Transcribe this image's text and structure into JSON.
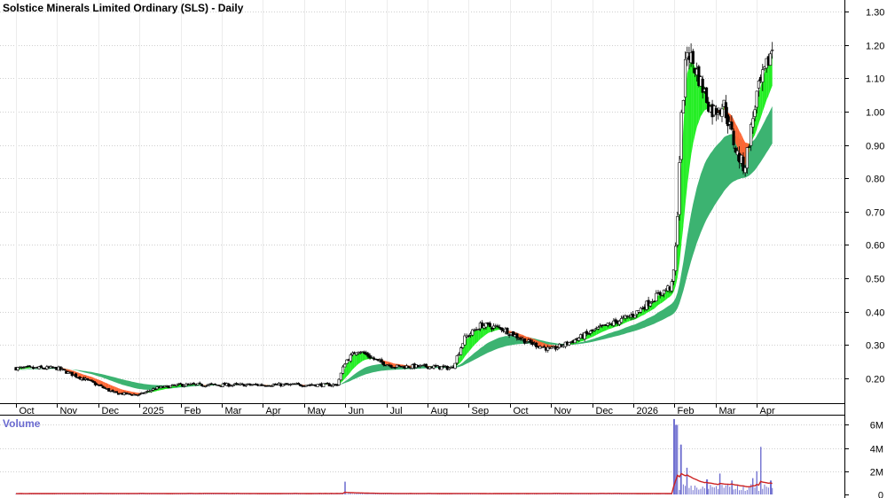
{
  "chart_data": {
    "type": "candlestick",
    "title": "Solstice Minerals Limited Ordinary (SLS) - Daily",
    "volume_label": "Volume",
    "price_axis": {
      "ticks": [
        0.2,
        0.3,
        0.4,
        0.5,
        0.6,
        0.7,
        0.8,
        0.9,
        1.0,
        1.1,
        1.2,
        1.3
      ],
      "tick_labels": [
        "0.20",
        "0.30",
        "0.40",
        "0.50",
        "0.60",
        "0.70",
        "0.80",
        "0.90",
        "1.00",
        "1.10",
        "1.20",
        "1.30"
      ],
      "range": [
        0.125,
        1.335
      ],
      "side": "right"
    },
    "volume_axis": {
      "ticks": [
        0,
        2,
        4,
        6
      ],
      "tick_labels": [
        "0",
        "2M",
        "4M",
        "6M"
      ],
      "range": [
        0,
        6.8
      ],
      "unit": "millions"
    },
    "months": [
      "Oct",
      "Nov",
      "Dec",
      "2025",
      "Feb",
      "Mar",
      "Apr",
      "May",
      "Jun",
      "Jul",
      "Aug",
      "Sep",
      "Oct",
      "Nov",
      "Dec",
      "2026",
      "Feb",
      "Mar",
      "Apr"
    ],
    "price_points": [
      {
        "t": 0.0,
        "c": 0.23
      },
      {
        "t": 1.0,
        "c": 0.23
      },
      {
        "t": 1.8,
        "c": 0.19
      },
      {
        "t": 2.4,
        "c": 0.155
      },
      {
        "t": 3.0,
        "c": 0.15
      },
      {
        "t": 3.4,
        "c": 0.17
      },
      {
        "t": 4.0,
        "c": 0.18
      },
      {
        "t": 5.0,
        "c": 0.18
      },
      {
        "t": 6.0,
        "c": 0.18
      },
      {
        "t": 7.0,
        "c": 0.18
      },
      {
        "t": 7.8,
        "c": 0.18
      },
      {
        "t": 8.0,
        "c": 0.25
      },
      {
        "t": 8.3,
        "c": 0.285
      },
      {
        "t": 8.8,
        "c": 0.25
      },
      {
        "t": 9.2,
        "c": 0.235
      },
      {
        "t": 10.0,
        "c": 0.235
      },
      {
        "t": 10.6,
        "c": 0.23
      },
      {
        "t": 10.9,
        "c": 0.32
      },
      {
        "t": 11.3,
        "c": 0.36
      },
      {
        "t": 11.8,
        "c": 0.35
      },
      {
        "t": 12.4,
        "c": 0.31
      },
      {
        "t": 13.0,
        "c": 0.285
      },
      {
        "t": 13.5,
        "c": 0.31
      },
      {
        "t": 14.0,
        "c": 0.34
      },
      {
        "t": 14.6,
        "c": 0.37
      },
      {
        "t": 15.0,
        "c": 0.39
      },
      {
        "t": 15.5,
        "c": 0.44
      },
      {
        "t": 15.95,
        "c": 0.48
      },
      {
        "t": 16.05,
        "c": 0.62
      },
      {
        "t": 16.15,
        "c": 0.95
      },
      {
        "t": 16.3,
        "c": 1.19
      },
      {
        "t": 16.6,
        "c": 1.1
      },
      {
        "t": 16.9,
        "c": 1.0
      },
      {
        "t": 17.2,
        "c": 1.02
      },
      {
        "t": 17.5,
        "c": 0.88
      },
      {
        "t": 17.7,
        "c": 0.83
      },
      {
        "t": 18.0,
        "c": 1.05
      },
      {
        "t": 18.2,
        "c": 1.12
      },
      {
        "t": 18.4,
        "c": 1.2
      }
    ],
    "volume_spikes": [
      {
        "t": 8.0,
        "v": 1.1
      },
      {
        "t": 16.0,
        "v": 6.5
      },
      {
        "t": 16.05,
        "v": 6.0
      },
      {
        "t": 16.15,
        "v": 4.3
      },
      {
        "t": 16.3,
        "v": 2.3
      },
      {
        "t": 16.8,
        "v": 1.3
      },
      {
        "t": 17.1,
        "v": 1.8
      },
      {
        "t": 17.4,
        "v": 1.2
      },
      {
        "t": 17.9,
        "v": 1.4
      },
      {
        "t": 18.0,
        "v": 2.0
      },
      {
        "t": 18.1,
        "v": 4.1
      },
      {
        "t": 18.35,
        "v": 1.2
      }
    ],
    "colors": {
      "background": "#ffffff",
      "grid": "#cfcfcf",
      "candle": "#000000",
      "short_ribbon_up": "#22ee22",
      "short_ribbon_down": "#ff6633",
      "long_ribbon": "#3cb371",
      "volume_bar": "#7070d0",
      "volume_ma": "#cc2222"
    }
  }
}
